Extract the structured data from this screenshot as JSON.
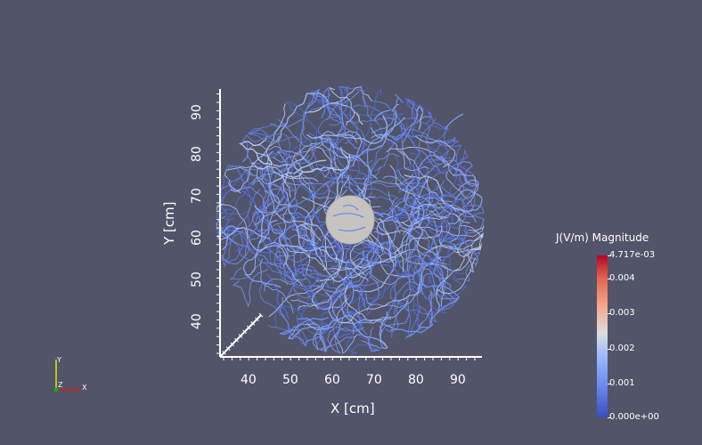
{
  "plot": {
    "x_axis_title": "X [cm]",
    "y_axis_title": "Y [cm]",
    "x_ticks": [
      "40",
      "50",
      "60",
      "70",
      "80",
      "90"
    ],
    "y_ticks": [
      "40",
      "50",
      "60",
      "70",
      "80",
      "90"
    ]
  },
  "colorbar": {
    "title": "J(V/m) Magnitude",
    "labels": [
      "4.717e-03",
      "0.004",
      "0.003",
      "0.002",
      "0.001",
      "0.000e+00"
    ],
    "colormap": "cool-to-warm"
  },
  "orientation": {
    "x": "X",
    "y": "Y",
    "z": "Z"
  },
  "colors": {
    "background": "#525469",
    "streamline": "#7e9cf2",
    "sphere": "#c9c6c2"
  }
}
